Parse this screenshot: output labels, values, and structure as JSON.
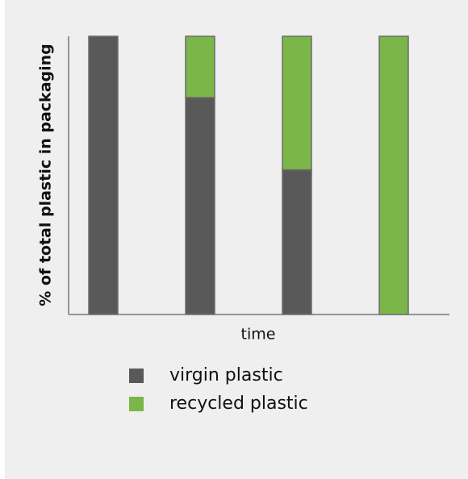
{
  "chart_data": {
    "type": "stacked_bar",
    "y_label": "% of total plastic in packaging",
    "x_label": "time",
    "categories": [
      null,
      null,
      null,
      null
    ],
    "series": [
      {
        "name": "virgin plastic",
        "color": "#595959",
        "values": [
          100,
          78,
          52,
          0
        ]
      },
      {
        "name": "recycled plastic",
        "color": "#7ab648",
        "values": [
          0,
          22,
          48,
          100
        ]
      }
    ],
    "ylim": [
      0,
      100
    ]
  }
}
